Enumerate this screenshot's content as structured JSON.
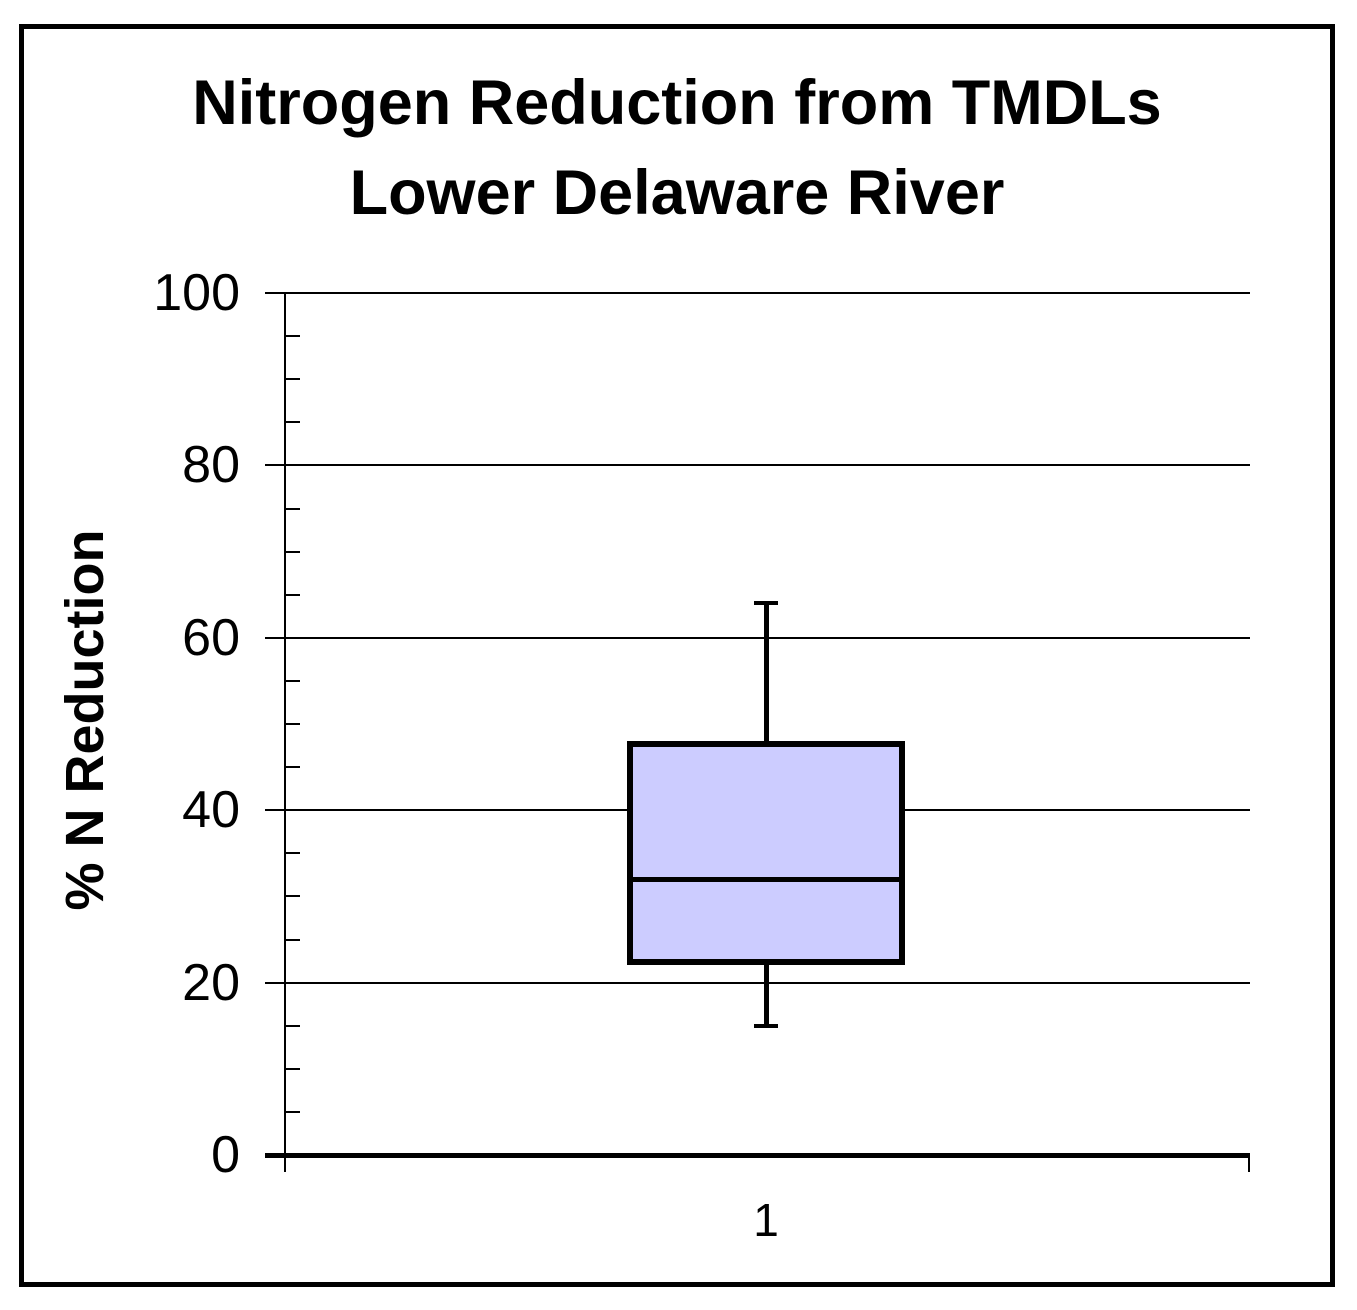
{
  "title": {
    "line1": "Nitrogen Reduction from TMDLs",
    "line2": "Lower Delaware River"
  },
  "y_axis": {
    "label": "% N Reduction",
    "tick_labels": [
      "0",
      "20",
      "40",
      "60",
      "80",
      "100"
    ]
  },
  "x_axis": {
    "tick_labels": [
      "1"
    ]
  },
  "chart_data": {
    "type": "boxplot",
    "title": "Nitrogen Reduction from TMDLs Lower Delaware River",
    "ylabel": "% N Reduction",
    "xlabel": "",
    "categories": [
      "1"
    ],
    "ylim": [
      0,
      100
    ],
    "y_major_tick": 20,
    "y_minor_tick": 5,
    "grid": "horizontal-major",
    "legend": "none",
    "series": [
      {
        "category": "1",
        "min": 15,
        "q1": 22,
        "median": 32,
        "q3": 48,
        "max": 64
      }
    ],
    "colors": {
      "box_fill": "#CCCCFF",
      "line": "#000000",
      "background": "#FFFFFF"
    }
  }
}
